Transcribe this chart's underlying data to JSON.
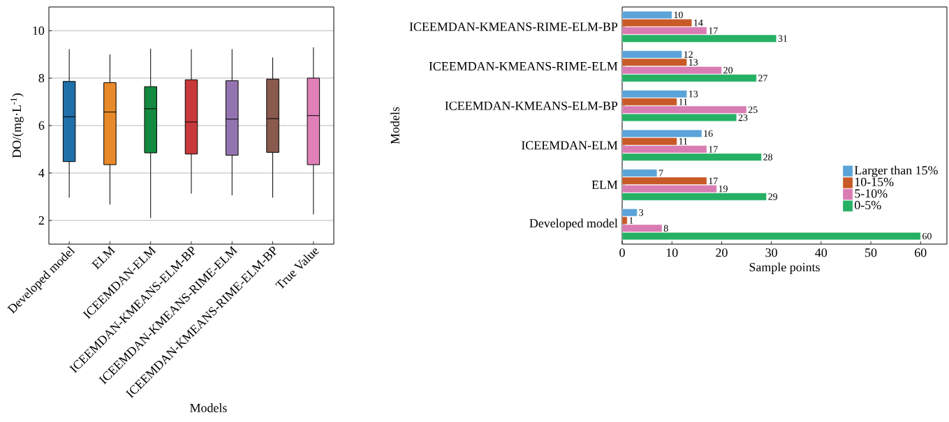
{
  "chart_data": [
    {
      "type": "box",
      "xlabel": "Models",
      "ylabel": "DO/(mg·L$^{-1}$)",
      "categories": [
        "Developed model",
        "ELM",
        "ICEEMDAN-ELM",
        "ICEEMDAN-KMEANS-ELM-BP",
        "ICEEMDAN-KMEANS-RIME-ELM",
        "ICEEMDAN-KMEANS-RIME-ELM-BP",
        "True Value"
      ],
      "colors": [
        "#1f6fa8",
        "#e8892a",
        "#138a3f",
        "#c8393b",
        "#9474b0",
        "#8a5a4f",
        "#e07fb8"
      ],
      "boxes": [
        {
          "low": 2.96,
          "q1": 4.48,
          "median": 6.37,
          "q3": 7.86,
          "high": 9.22
        },
        {
          "low": 2.67,
          "q1": 4.35,
          "median": 6.57,
          "q3": 7.81,
          "high": 9.0
        },
        {
          "low": 2.1,
          "q1": 4.85,
          "median": 6.71,
          "q3": 7.64,
          "high": 9.24
        },
        {
          "low": 3.13,
          "q1": 4.8,
          "median": 6.15,
          "q3": 7.93,
          "high": 9.22
        },
        {
          "low": 3.06,
          "q1": 4.75,
          "median": 6.27,
          "q3": 7.89,
          "high": 9.22
        },
        {
          "low": 2.96,
          "q1": 4.87,
          "median": 6.29,
          "q3": 7.96,
          "high": 8.87
        },
        {
          "low": 2.25,
          "q1": 4.35,
          "median": 6.42,
          "q3": 8.0,
          "high": 9.3
        }
      ],
      "ylim": [
        1,
        11
      ],
      "yticks": [
        2,
        4,
        6,
        8,
        10
      ],
      "grid": "y"
    },
    {
      "type": "bar",
      "orientation": "horizontal",
      "xlabel": "Sample points",
      "ylabel": "Models",
      "categories": [
        "ICEEMDAN-KMEANS-RIME-ELM-BP",
        "ICEEMDAN-KMEANS-RIME-ELM",
        "ICEEMDAN-KMEANS-ELM-BP",
        "ICEEMDAN-ELM",
        "ELM",
        "Developed model"
      ],
      "series": [
        {
          "name": "Larger than 15%",
          "color": "#5ba3d9",
          "values": [
            10,
            12,
            13,
            16,
            7,
            3
          ]
        },
        {
          "name": "10-15%",
          "color": "#c85a27",
          "values": [
            14,
            13,
            11,
            11,
            17,
            1
          ]
        },
        {
          "name": "5-10%",
          "color": "#d97cb3",
          "values": [
            17,
            20,
            25,
            17,
            19,
            8
          ]
        },
        {
          "name": "0-5%",
          "color": "#25b064",
          "values": [
            31,
            27,
            23,
            28,
            29,
            60
          ]
        }
      ],
      "xlim": [
        0,
        65.3
      ],
      "xticks": [
        0,
        10,
        20,
        30,
        40,
        50,
        60
      ],
      "data_labels": true,
      "legend": "bottom right"
    }
  ]
}
